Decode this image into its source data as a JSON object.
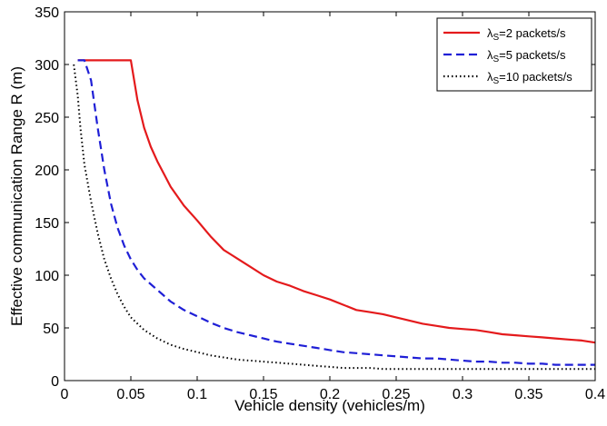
{
  "chart_data": {
    "type": "line",
    "title": "",
    "xlabel": "Vehicle density (vehicles/m)",
    "ylabel": "Effective communication Range R (m)",
    "xlim": [
      0,
      0.4
    ],
    "ylim": [
      0,
      350
    ],
    "xticks": [
      0,
      0.05,
      0.1,
      0.15,
      0.2,
      0.25,
      0.3,
      0.35,
      0.4
    ],
    "xtick_labels": [
      "0",
      "0.05",
      "0.1",
      "0.15",
      "0.2",
      "0.25",
      "0.3",
      "0.35",
      "0.4"
    ],
    "yticks": [
      0,
      50,
      100,
      150,
      200,
      250,
      300,
      350
    ],
    "ytick_labels": [
      "0",
      "50",
      "100",
      "150",
      "200",
      "250",
      "300",
      "350"
    ],
    "grid": false,
    "legend_position": "top-right",
    "series": [
      {
        "name": "λS=2 packets/s",
        "legend_symbol": "λ",
        "legend_sub": "S",
        "legend_rest": "=2 packets/s",
        "color": "#e41a1c",
        "style": "solid",
        "x": [
          0.01,
          0.02,
          0.03,
          0.04,
          0.05,
          0.055,
          0.06,
          0.065,
          0.07,
          0.075,
          0.08,
          0.09,
          0.1,
          0.11,
          0.12,
          0.13,
          0.14,
          0.15,
          0.16,
          0.17,
          0.18,
          0.19,
          0.2,
          0.21,
          0.22,
          0.23,
          0.24,
          0.25,
          0.26,
          0.27,
          0.28,
          0.29,
          0.3,
          0.31,
          0.32,
          0.33,
          0.34,
          0.35,
          0.36,
          0.37,
          0.38,
          0.39,
          0.4
        ],
        "y": [
          304,
          304,
          304,
          304,
          304,
          266,
          240,
          222,
          208,
          196,
          184,
          166,
          152,
          137,
          124,
          116,
          108,
          100,
          94,
          90,
          85,
          81,
          77,
          72,
          67,
          65,
          63,
          60,
          57,
          54,
          52,
          50,
          49,
          48,
          46,
          44,
          43,
          42,
          41,
          40,
          39,
          38,
          36
        ]
      },
      {
        "name": "λS=5 packets/s",
        "legend_symbol": "λ",
        "legend_sub": "S",
        "legend_rest": "=5 packets/s",
        "color": "#1f1fd6",
        "style": "dashed",
        "x": [
          0.01,
          0.015,
          0.02,
          0.025,
          0.03,
          0.035,
          0.04,
          0.045,
          0.05,
          0.055,
          0.06,
          0.07,
          0.08,
          0.09,
          0.1,
          0.11,
          0.12,
          0.13,
          0.14,
          0.15,
          0.16,
          0.17,
          0.18,
          0.19,
          0.2,
          0.21,
          0.22,
          0.23,
          0.24,
          0.25,
          0.26,
          0.27,
          0.28,
          0.29,
          0.3,
          0.31,
          0.32,
          0.33,
          0.34,
          0.35,
          0.36,
          0.37,
          0.38,
          0.39,
          0.4
        ],
        "y": [
          304,
          304,
          285,
          240,
          200,
          168,
          145,
          128,
          115,
          105,
          97,
          86,
          75,
          67,
          61,
          55,
          50,
          46,
          43,
          40,
          37,
          35,
          33,
          31,
          29,
          27,
          26,
          25,
          24,
          23,
          22,
          21,
          21,
          20,
          19,
          18,
          18,
          17,
          17,
          16,
          16,
          15,
          15,
          15,
          15
        ]
      },
      {
        "name": "λS=10 packets/s",
        "legend_symbol": "λ",
        "legend_sub": "S",
        "legend_rest": "=10 packets/s",
        "color": "#000000",
        "style": "dotted",
        "x": [
          0.007,
          0.01,
          0.012,
          0.015,
          0.02,
          0.025,
          0.03,
          0.035,
          0.04,
          0.045,
          0.05,
          0.06,
          0.07,
          0.08,
          0.09,
          0.1,
          0.11,
          0.12,
          0.13,
          0.14,
          0.15,
          0.16,
          0.17,
          0.18,
          0.19,
          0.2,
          0.21,
          0.22,
          0.23,
          0.24,
          0.25,
          0.26,
          0.27,
          0.28,
          0.29,
          0.3,
          0.31,
          0.32,
          0.33,
          0.34,
          0.35,
          0.36,
          0.37,
          0.38,
          0.39,
          0.4
        ],
        "y": [
          300,
          270,
          240,
          205,
          170,
          140,
          115,
          97,
          82,
          70,
          60,
          48,
          40,
          34,
          30,
          27,
          24,
          22,
          20,
          19,
          18,
          17,
          16,
          15,
          14,
          13,
          12,
          12,
          12,
          11,
          11,
          11,
          11,
          11,
          11,
          11,
          11,
          11,
          11,
          11,
          11,
          11,
          11,
          11,
          11,
          11
        ]
      }
    ]
  }
}
